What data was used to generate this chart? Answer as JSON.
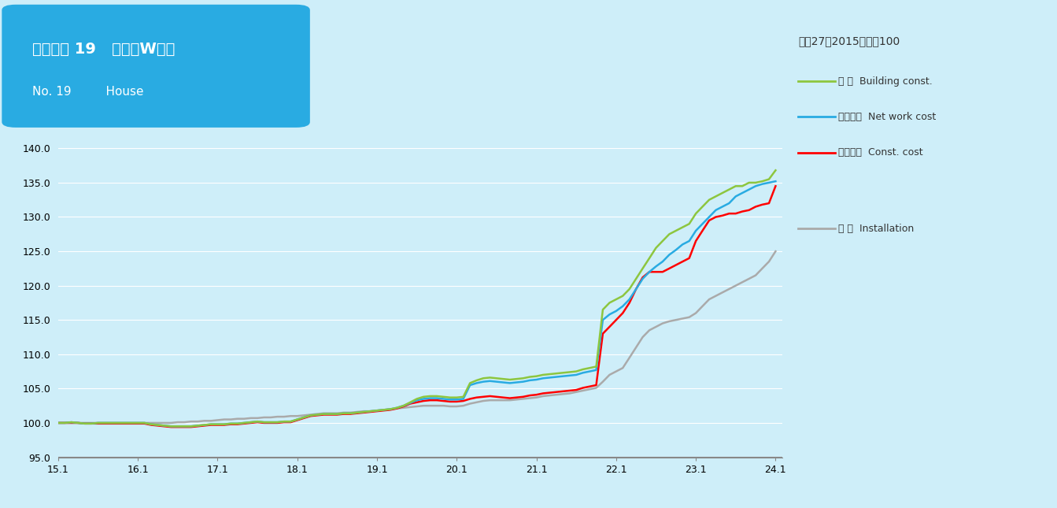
{
  "title_line1": "建物種類 19   住宅（W造）",
  "title_line2": "No. 19         House",
  "note": "平成27（2015）年＝100",
  "legend": [
    {
      "label": "建 築  Building const.",
      "color": "#8dc63f"
    },
    {
      "label": "純工事費  Net work cost",
      "color": "#29abe2"
    },
    {
      "label": "工事原価  Const. cost",
      "color": "#ff0000"
    },
    {
      "label": "設 備  Installation",
      "color": "#aaaaaa"
    }
  ],
  "background_color": "#ceeef9",
  "plot_background": "#ceeef9",
  "ylim": [
    95.0,
    142.0
  ],
  "yticks": [
    95.0,
    100.0,
    105.0,
    110.0,
    115.0,
    120.0,
    125.0,
    130.0,
    135.0,
    140.0
  ],
  "xlabel_ticks": [
    "15.1",
    "16.1",
    "17.1",
    "18.1",
    "19.1",
    "20.1",
    "21.1",
    "22.1",
    "23.1",
    "24.1"
  ],
  "series": {
    "building": {
      "color": "#8dc63f",
      "lw": 1.8,
      "data_x": [
        2015.0,
        2015.083,
        2015.167,
        2015.25,
        2015.333,
        2015.417,
        2015.5,
        2015.583,
        2015.667,
        2015.75,
        2015.833,
        2015.917,
        2016.0,
        2016.083,
        2016.167,
        2016.25,
        2016.333,
        2016.417,
        2016.5,
        2016.583,
        2016.667,
        2016.75,
        2016.833,
        2016.917,
        2017.0,
        2017.083,
        2017.167,
        2017.25,
        2017.333,
        2017.417,
        2017.5,
        2017.583,
        2017.667,
        2017.75,
        2017.833,
        2017.917,
        2018.0,
        2018.083,
        2018.167,
        2018.25,
        2018.333,
        2018.417,
        2018.5,
        2018.583,
        2018.667,
        2018.75,
        2018.833,
        2018.917,
        2019.0,
        2019.083,
        2019.167,
        2019.25,
        2019.333,
        2019.417,
        2019.5,
        2019.583,
        2019.667,
        2019.75,
        2019.833,
        2019.917,
        2020.0,
        2020.083,
        2020.167,
        2020.25,
        2020.333,
        2020.417,
        2020.5,
        2020.583,
        2020.667,
        2020.75,
        2020.833,
        2020.917,
        2021.0,
        2021.083,
        2021.167,
        2021.25,
        2021.333,
        2021.417,
        2021.5,
        2021.583,
        2021.667,
        2021.75,
        2021.833,
        2021.917,
        2022.0,
        2022.083,
        2022.167,
        2022.25,
        2022.333,
        2022.417,
        2022.5,
        2022.583,
        2022.667,
        2022.75,
        2022.833,
        2022.917,
        2023.0,
        2023.083,
        2023.167,
        2023.25,
        2023.333,
        2023.417,
        2023.5,
        2023.583,
        2023.667,
        2023.75,
        2023.833,
        2023.917,
        2024.0
      ],
      "data_y": [
        100.0,
        100.0,
        100.1,
        100.0,
        99.9,
        99.9,
        100.0,
        100.0,
        100.0,
        100.0,
        100.0,
        100.0,
        100.0,
        100.0,
        99.8,
        99.7,
        99.6,
        99.5,
        99.5,
        99.5,
        99.5,
        99.6,
        99.7,
        99.8,
        99.8,
        99.8,
        99.9,
        99.9,
        100.0,
        100.1,
        100.2,
        100.1,
        100.1,
        100.1,
        100.2,
        100.2,
        100.5,
        100.8,
        101.1,
        101.2,
        101.3,
        101.3,
        101.3,
        101.4,
        101.4,
        101.5,
        101.6,
        101.7,
        101.8,
        101.9,
        102.0,
        102.2,
        102.5,
        103.0,
        103.5,
        103.8,
        103.9,
        103.9,
        103.8,
        103.7,
        103.7,
        103.8,
        105.8,
        106.2,
        106.5,
        106.6,
        106.5,
        106.4,
        106.3,
        106.4,
        106.5,
        106.7,
        106.8,
        107.0,
        107.1,
        107.2,
        107.3,
        107.4,
        107.5,
        107.8,
        108.0,
        108.2,
        116.5,
        117.5,
        118.0,
        118.5,
        119.5,
        121.0,
        122.5,
        124.0,
        125.5,
        126.5,
        127.5,
        128.0,
        128.5,
        129.0,
        130.5,
        131.5,
        132.5,
        133.0,
        133.5,
        134.0,
        134.5,
        134.5,
        135.0,
        135.0,
        135.2,
        135.5,
        136.8
      ]
    },
    "network": {
      "color": "#29abe2",
      "lw": 1.8,
      "data_x": [
        2015.0,
        2015.083,
        2015.167,
        2015.25,
        2015.333,
        2015.417,
        2015.5,
        2015.583,
        2015.667,
        2015.75,
        2015.833,
        2015.917,
        2016.0,
        2016.083,
        2016.167,
        2016.25,
        2016.333,
        2016.417,
        2016.5,
        2016.583,
        2016.667,
        2016.75,
        2016.833,
        2016.917,
        2017.0,
        2017.083,
        2017.167,
        2017.25,
        2017.333,
        2017.417,
        2017.5,
        2017.583,
        2017.667,
        2017.75,
        2017.833,
        2017.917,
        2018.0,
        2018.083,
        2018.167,
        2018.25,
        2018.333,
        2018.417,
        2018.5,
        2018.583,
        2018.667,
        2018.75,
        2018.833,
        2018.917,
        2019.0,
        2019.083,
        2019.167,
        2019.25,
        2019.333,
        2019.417,
        2019.5,
        2019.583,
        2019.667,
        2019.75,
        2019.833,
        2019.917,
        2020.0,
        2020.083,
        2020.167,
        2020.25,
        2020.333,
        2020.417,
        2020.5,
        2020.583,
        2020.667,
        2020.75,
        2020.833,
        2020.917,
        2021.0,
        2021.083,
        2021.167,
        2021.25,
        2021.333,
        2021.417,
        2021.5,
        2021.583,
        2021.667,
        2021.75,
        2021.833,
        2021.917,
        2022.0,
        2022.083,
        2022.167,
        2022.25,
        2022.333,
        2022.417,
        2022.5,
        2022.583,
        2022.667,
        2022.75,
        2022.833,
        2022.917,
        2023.0,
        2023.083,
        2023.167,
        2023.25,
        2023.333,
        2023.417,
        2023.5,
        2023.583,
        2023.667,
        2023.75,
        2023.833,
        2023.917,
        2024.0
      ],
      "data_y": [
        100.0,
        100.0,
        100.1,
        100.0,
        99.9,
        99.9,
        100.0,
        100.0,
        100.0,
        100.0,
        100.0,
        100.0,
        100.0,
        100.0,
        99.8,
        99.7,
        99.6,
        99.5,
        99.5,
        99.5,
        99.5,
        99.6,
        99.7,
        99.8,
        99.8,
        99.8,
        99.9,
        99.9,
        100.0,
        100.1,
        100.2,
        100.1,
        100.1,
        100.1,
        100.2,
        100.2,
        100.5,
        100.8,
        101.1,
        101.2,
        101.3,
        101.3,
        101.3,
        101.4,
        101.4,
        101.5,
        101.6,
        101.7,
        101.8,
        101.9,
        102.0,
        102.2,
        102.5,
        102.9,
        103.3,
        103.5,
        103.6,
        103.6,
        103.5,
        103.4,
        103.4,
        103.5,
        105.5,
        105.8,
        106.0,
        106.1,
        106.0,
        105.9,
        105.8,
        105.9,
        106.0,
        106.2,
        106.3,
        106.5,
        106.6,
        106.7,
        106.8,
        106.9,
        107.0,
        107.3,
        107.5,
        107.7,
        115.0,
        115.8,
        116.3,
        117.0,
        118.0,
        119.5,
        121.0,
        122.0,
        122.8,
        123.5,
        124.5,
        125.2,
        126.0,
        126.5,
        128.0,
        129.0,
        130.0,
        131.0,
        131.5,
        132.0,
        133.0,
        133.5,
        134.0,
        134.5,
        134.8,
        135.0,
        135.2
      ]
    },
    "constcost": {
      "color": "#ff0000",
      "lw": 1.8,
      "data_x": [
        2015.0,
        2015.083,
        2015.167,
        2015.25,
        2015.333,
        2015.417,
        2015.5,
        2015.583,
        2015.667,
        2015.75,
        2015.833,
        2015.917,
        2016.0,
        2016.083,
        2016.167,
        2016.25,
        2016.333,
        2016.417,
        2016.5,
        2016.583,
        2016.667,
        2016.75,
        2016.833,
        2016.917,
        2017.0,
        2017.083,
        2017.167,
        2017.25,
        2017.333,
        2017.417,
        2017.5,
        2017.583,
        2017.667,
        2017.75,
        2017.833,
        2017.917,
        2018.0,
        2018.083,
        2018.167,
        2018.25,
        2018.333,
        2018.417,
        2018.5,
        2018.583,
        2018.667,
        2018.75,
        2018.833,
        2018.917,
        2019.0,
        2019.083,
        2019.167,
        2019.25,
        2019.333,
        2019.417,
        2019.5,
        2019.583,
        2019.667,
        2019.75,
        2019.833,
        2019.917,
        2020.0,
        2020.083,
        2020.167,
        2020.25,
        2020.333,
        2020.417,
        2020.5,
        2020.583,
        2020.667,
        2020.75,
        2020.833,
        2020.917,
        2021.0,
        2021.083,
        2021.167,
        2021.25,
        2021.333,
        2021.417,
        2021.5,
        2021.583,
        2021.667,
        2021.75,
        2021.833,
        2021.917,
        2022.0,
        2022.083,
        2022.167,
        2022.25,
        2022.333,
        2022.417,
        2022.5,
        2022.583,
        2022.667,
        2022.75,
        2022.833,
        2022.917,
        2023.0,
        2023.083,
        2023.167,
        2023.25,
        2023.333,
        2023.417,
        2023.5,
        2023.583,
        2023.667,
        2023.75,
        2023.833,
        2023.917,
        2024.0
      ],
      "data_y": [
        100.0,
        100.0,
        100.0,
        100.0,
        99.9,
        99.9,
        99.9,
        99.9,
        99.9,
        99.9,
        99.9,
        99.9,
        99.9,
        99.9,
        99.7,
        99.6,
        99.5,
        99.4,
        99.4,
        99.4,
        99.4,
        99.5,
        99.6,
        99.7,
        99.7,
        99.7,
        99.8,
        99.8,
        99.9,
        100.0,
        100.1,
        100.0,
        100.0,
        100.0,
        100.1,
        100.1,
        100.4,
        100.7,
        101.0,
        101.1,
        101.2,
        101.2,
        101.2,
        101.3,
        101.3,
        101.4,
        101.5,
        101.6,
        101.7,
        101.8,
        101.9,
        102.1,
        102.4,
        102.8,
        103.0,
        103.2,
        103.3,
        103.3,
        103.2,
        103.1,
        103.1,
        103.2,
        103.5,
        103.7,
        103.8,
        103.9,
        103.8,
        103.7,
        103.6,
        103.7,
        103.8,
        104.0,
        104.1,
        104.3,
        104.4,
        104.5,
        104.6,
        104.7,
        104.8,
        105.1,
        105.3,
        105.5,
        113.0,
        114.0,
        115.0,
        116.0,
        117.5,
        119.5,
        121.2,
        122.0,
        122.0,
        122.0,
        122.5,
        123.0,
        123.5,
        124.0,
        126.5,
        128.0,
        129.5,
        130.0,
        130.2,
        130.5,
        130.5,
        130.8,
        131.0,
        131.5,
        131.8,
        132.0,
        134.5
      ]
    },
    "installation": {
      "color": "#aaaaaa",
      "lw": 1.8,
      "data_x": [
        2015.0,
        2015.083,
        2015.167,
        2015.25,
        2015.333,
        2015.417,
        2015.5,
        2015.583,
        2015.667,
        2015.75,
        2015.833,
        2015.917,
        2016.0,
        2016.083,
        2016.167,
        2016.25,
        2016.333,
        2016.417,
        2016.5,
        2016.583,
        2016.667,
        2016.75,
        2016.833,
        2016.917,
        2017.0,
        2017.083,
        2017.167,
        2017.25,
        2017.333,
        2017.417,
        2017.5,
        2017.583,
        2017.667,
        2017.75,
        2017.833,
        2017.917,
        2018.0,
        2018.083,
        2018.167,
        2018.25,
        2018.333,
        2018.417,
        2018.5,
        2018.583,
        2018.667,
        2018.75,
        2018.833,
        2018.917,
        2019.0,
        2019.083,
        2019.167,
        2019.25,
        2019.333,
        2019.417,
        2019.5,
        2019.583,
        2019.667,
        2019.75,
        2019.833,
        2019.917,
        2020.0,
        2020.083,
        2020.167,
        2020.25,
        2020.333,
        2020.417,
        2020.5,
        2020.583,
        2020.667,
        2020.75,
        2020.833,
        2020.917,
        2021.0,
        2021.083,
        2021.167,
        2021.25,
        2021.333,
        2021.417,
        2021.5,
        2021.583,
        2021.667,
        2021.75,
        2021.833,
        2021.917,
        2022.0,
        2022.083,
        2022.167,
        2022.25,
        2022.333,
        2022.417,
        2022.5,
        2022.583,
        2022.667,
        2022.75,
        2022.833,
        2022.917,
        2023.0,
        2023.083,
        2023.167,
        2023.25,
        2023.333,
        2023.417,
        2023.5,
        2023.583,
        2023.667,
        2023.75,
        2023.833,
        2023.917,
        2024.0
      ],
      "data_y": [
        100.0,
        100.0,
        100.0,
        100.0,
        100.0,
        100.0,
        100.0,
        100.0,
        100.0,
        100.0,
        100.0,
        100.0,
        100.0,
        100.0,
        100.0,
        100.0,
        100.0,
        100.0,
        100.1,
        100.1,
        100.2,
        100.2,
        100.3,
        100.3,
        100.4,
        100.5,
        100.5,
        100.6,
        100.6,
        100.7,
        100.7,
        100.8,
        100.8,
        100.9,
        100.9,
        101.0,
        101.0,
        101.1,
        101.2,
        101.3,
        101.4,
        101.4,
        101.4,
        101.5,
        101.5,
        101.6,
        101.7,
        101.7,
        101.8,
        101.9,
        102.0,
        102.1,
        102.2,
        102.3,
        102.4,
        102.5,
        102.5,
        102.5,
        102.5,
        102.4,
        102.4,
        102.5,
        102.8,
        103.0,
        103.2,
        103.3,
        103.3,
        103.3,
        103.3,
        103.4,
        103.5,
        103.6,
        103.7,
        103.9,
        104.0,
        104.1,
        104.2,
        104.3,
        104.5,
        104.7,
        104.9,
        105.1,
        106.0,
        107.0,
        107.5,
        108.0,
        109.5,
        111.0,
        112.5,
        113.5,
        114.0,
        114.5,
        114.8,
        115.0,
        115.2,
        115.4,
        116.0,
        117.0,
        118.0,
        118.5,
        119.0,
        119.5,
        120.0,
        120.5,
        121.0,
        121.5,
        122.5,
        123.5,
        125.0
      ]
    }
  }
}
